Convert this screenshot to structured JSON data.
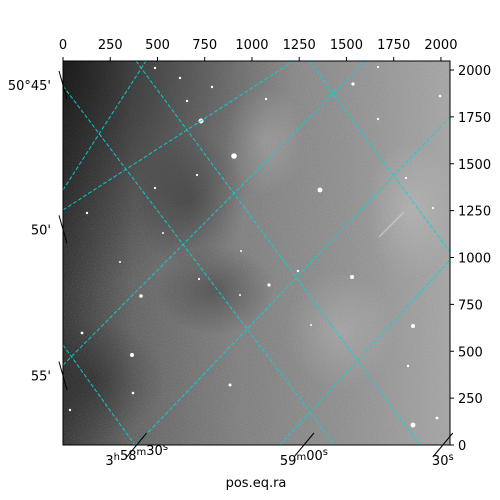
{
  "chart_data": {
    "type": "image",
    "xlabel": "pos.eq.ra",
    "ylabel": "",
    "pixel_axes": {
      "x_range": [
        0,
        2048
      ],
      "y_range": [
        0,
        2048
      ],
      "x_ticks": [
        0,
        250,
        500,
        750,
        1000,
        1250,
        1500,
        1750,
        2000
      ],
      "y_ticks": [
        0,
        250,
        500,
        750,
        1000,
        1250,
        1500,
        1750,
        2000
      ]
    },
    "world_ticks": {
      "ra": [
        {
          "x": 390,
          "label_parts": [
            [
              "3",
              "h"
            ],
            [
              "58",
              "m"
            ],
            [
              "30",
              "s"
            ]
          ]
        },
        {
          "x": 1275,
          "label_parts": [
            [
              "59",
              "m"
            ],
            [
              "00",
              "s"
            ]
          ]
        },
        {
          "x": 2010,
          "label_parts": [
            [
              "30",
              "s"
            ]
          ]
        }
      ],
      "dec": [
        {
          "y": 1920,
          "label": "50°45'"
        },
        {
          "y": 1150,
          "label": "50'"
        },
        {
          "y": 370,
          "label": "55'"
        }
      ]
    },
    "grid": true,
    "grid_color": "#00d8d8",
    "colormap": "gray"
  }
}
